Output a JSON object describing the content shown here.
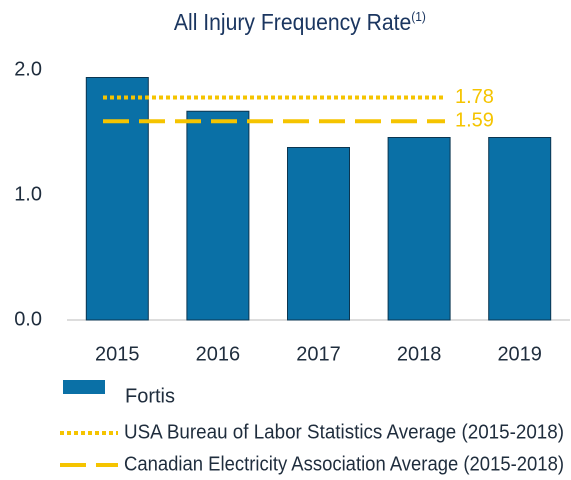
{
  "chart_data": {
    "type": "bar",
    "title": "All Injury Frequency Rate",
    "title_note": "(1)",
    "categories": [
      "2015",
      "2016",
      "2017",
      "2018",
      "2019"
    ],
    "series": [
      {
        "name": "Fortis",
        "color": "#0a70a6",
        "values": [
          1.94,
          1.67,
          1.38,
          1.46,
          1.46
        ]
      }
    ],
    "reference_lines": [
      {
        "name": "USA Bureau of Labor Statistics Average (2015-2018)",
        "value": 1.78,
        "style": "dotted",
        "color": "#f5c400"
      },
      {
        "name": "Canadian Electricity Association Average (2015-2018)",
        "value": 1.59,
        "style": "dashed",
        "color": "#f5c400"
      }
    ],
    "ylim": [
      0,
      2
    ],
    "yticks": [
      {
        "value": 0,
        "label": "0.0"
      },
      {
        "value": 1,
        "label": "1.0"
      },
      {
        "value": 2,
        "label": "2.0"
      }
    ]
  }
}
